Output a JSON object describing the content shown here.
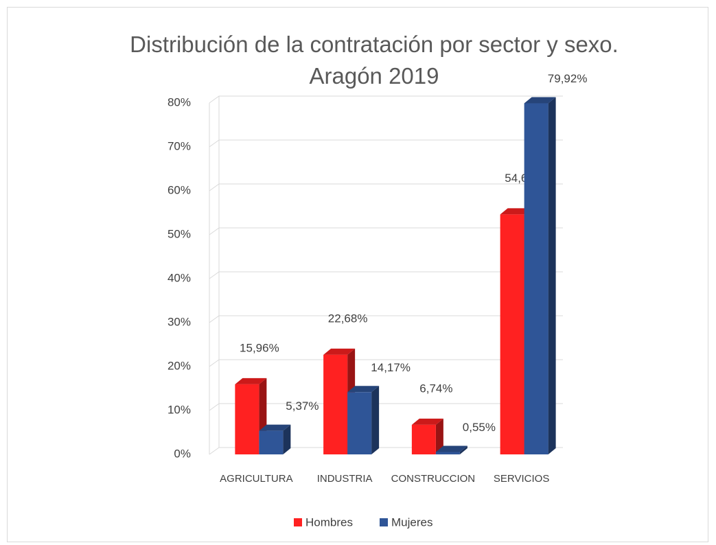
{
  "chart_data": {
    "type": "bar3d",
    "title": "Distribución de la contratación por sector y sexo. Aragón 2019",
    "categories": [
      "AGRICULTURA",
      "INDUSTRIA",
      "CONSTRUCCION",
      "SERVICIOS"
    ],
    "series": [
      {
        "name": "Hombres",
        "color": "#ff2121",
        "values": [
          15.96,
          22.68,
          6.74,
          54.62
        ],
        "value_labels": [
          "15,96%",
          "22,68%",
          "6,74%",
          "54,62%"
        ]
      },
      {
        "name": "Mujeres",
        "color": "#2f5597",
        "values": [
          5.37,
          14.17,
          0.55,
          79.92
        ],
        "value_labels": [
          "5,37%",
          "14,17%",
          "0,55%",
          "79,92%"
        ]
      }
    ],
    "ylim": [
      0,
      80
    ],
    "yticks": [
      {
        "value": 0,
        "label": "0%"
      },
      {
        "value": 10,
        "label": "10%"
      },
      {
        "value": 20,
        "label": "20%"
      },
      {
        "value": 30,
        "label": "30%"
      },
      {
        "value": 40,
        "label": "40%"
      },
      {
        "value": 50,
        "label": "50%"
      },
      {
        "value": 60,
        "label": "60%"
      },
      {
        "value": 70,
        "label": "70%"
      },
      {
        "value": 80,
        "label": "80%"
      }
    ],
    "grid": true,
    "legend": "bottom"
  }
}
